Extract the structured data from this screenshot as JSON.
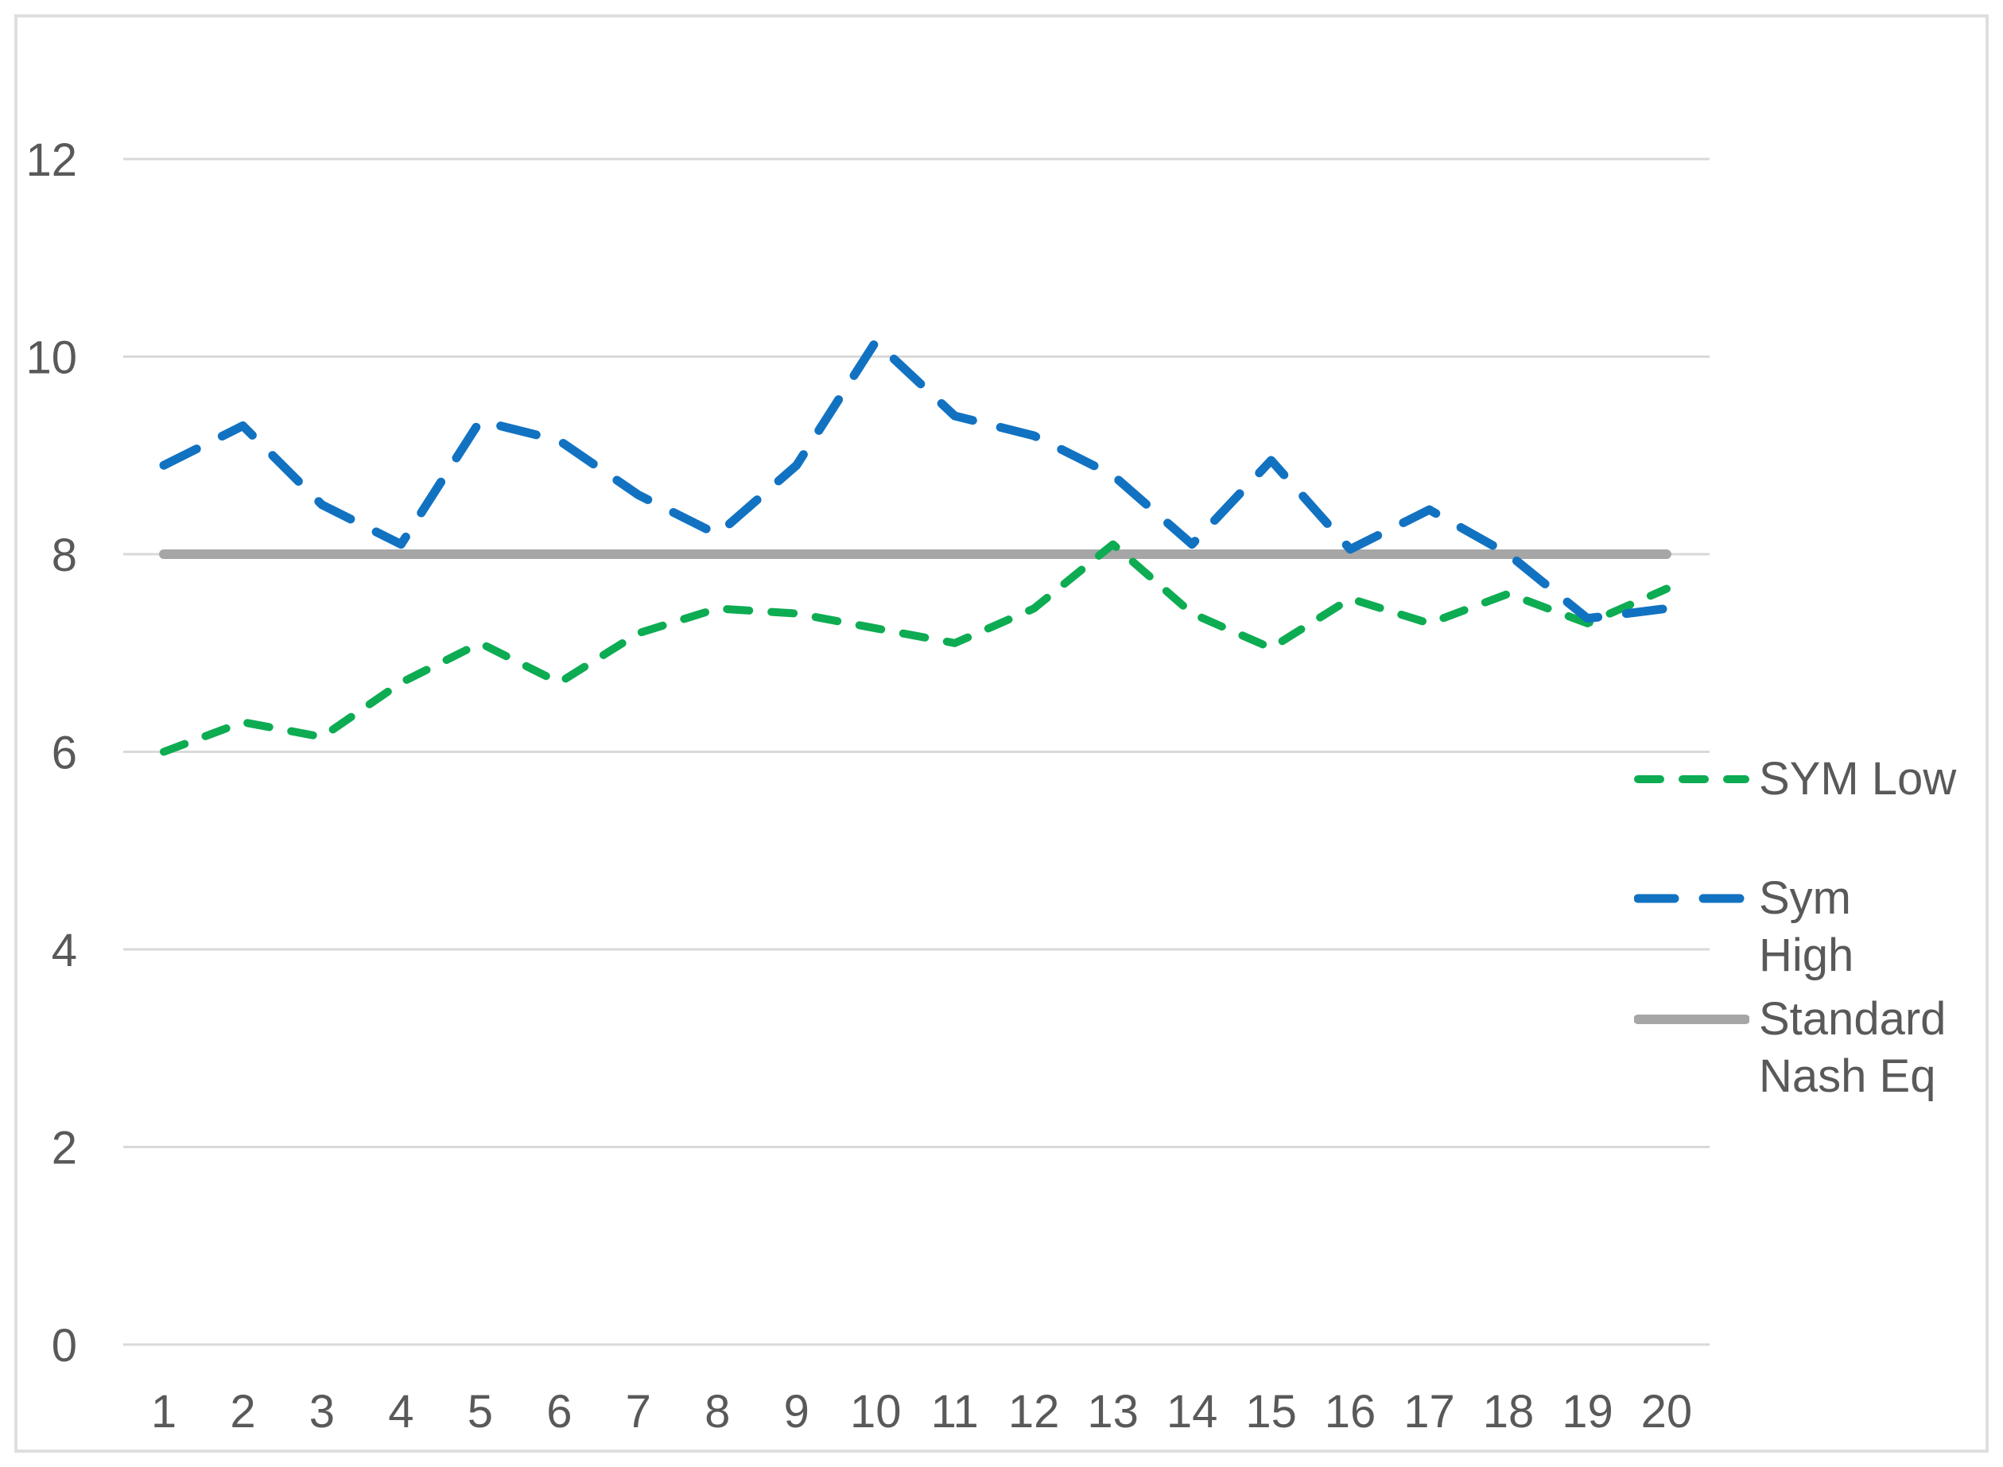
{
  "chart_data": {
    "type": "line",
    "title": "",
    "xlabel": "",
    "ylabel": "",
    "x_categories": [
      1,
      2,
      3,
      4,
      5,
      6,
      7,
      8,
      9,
      10,
      11,
      12,
      13,
      14,
      15,
      16,
      17,
      18,
      19,
      20
    ],
    "y_ticks": [
      0,
      2,
      4,
      6,
      8,
      10,
      12
    ],
    "ylim": [
      0,
      12
    ],
    "grid": "horizontal",
    "legend_position": "right",
    "series": [
      {
        "name": "SYM Low",
        "color": "#0dac52",
        "style": "short-dash",
        "values": [
          6.0,
          6.3,
          6.15,
          6.7,
          7.1,
          6.7,
          7.2,
          7.45,
          7.4,
          7.25,
          7.1,
          7.45,
          8.1,
          7.4,
          7.05,
          7.55,
          7.3,
          7.6,
          7.3,
          7.65
        ]
      },
      {
        "name": "Sym High",
        "color": "#1272c2",
        "style": "long-dash",
        "values": [
          8.9,
          9.3,
          8.5,
          8.1,
          9.35,
          9.15,
          8.6,
          8.2,
          8.9,
          10.15,
          9.4,
          9.2,
          8.8,
          8.1,
          8.95,
          8.05,
          8.45,
          8.0,
          7.35,
          7.45
        ]
      },
      {
        "name": "Standard Nash Eq",
        "color": "#a6a6a6",
        "style": "solid",
        "values": [
          8,
          8,
          8,
          8,
          8,
          8,
          8,
          8,
          8,
          8,
          8,
          8,
          8,
          8,
          8,
          8,
          8,
          8,
          8,
          8
        ]
      }
    ],
    "colors": {
      "gridline": "#d9d9d9",
      "tick_text": "#595959",
      "frame": "#dedede"
    }
  }
}
